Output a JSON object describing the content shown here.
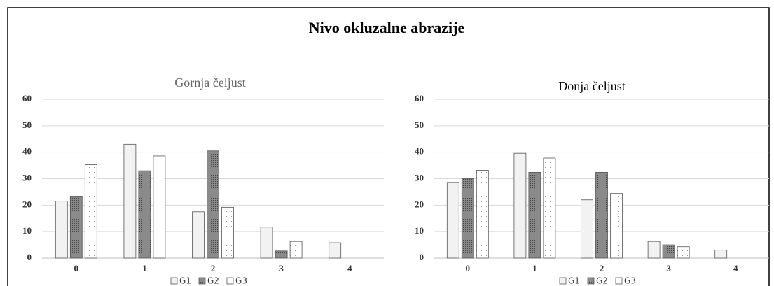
{
  "title": "Nivo okluzalne abrazije",
  "chart_data": [
    {
      "type": "bar",
      "title": "Gornja čeljust",
      "title_color": "#666666",
      "categories": [
        "0",
        "1",
        "2",
        "3",
        "4"
      ],
      "series": [
        {
          "name": "G1",
          "color": "#f2f2f2",
          "pattern": "none",
          "values": [
            21.5,
            43,
            17.5,
            11.7,
            5.8
          ]
        },
        {
          "name": "G2",
          "color": "#8a8a8a",
          "pattern": "dense",
          "values": [
            23.2,
            33,
            40.5,
            2.7,
            0
          ]
        },
        {
          "name": "G3",
          "color": "#ffffff",
          "pattern": "dots",
          "values": [
            35.3,
            38.6,
            19.2,
            6.3,
            0
          ]
        }
      ],
      "ylim": [
        0,
        60
      ],
      "yticks": [
        0,
        10,
        20,
        30,
        40,
        50,
        60
      ],
      "grid": true,
      "legend": "bottom"
    },
    {
      "type": "bar",
      "title": "Donja čeljust",
      "title_color": "#000000",
      "categories": [
        "0",
        "1",
        "2",
        "3",
        "4"
      ],
      "series": [
        {
          "name": "G1",
          "color": "#f2f2f2",
          "pattern": "none",
          "values": [
            28.6,
            39.6,
            22,
            6.3,
            3
          ]
        },
        {
          "name": "G2",
          "color": "#8a8a8a",
          "pattern": "dense",
          "values": [
            30,
            32.4,
            32.4,
            5,
            0
          ]
        },
        {
          "name": "G3",
          "color": "#ffffff",
          "pattern": "dots",
          "values": [
            33.2,
            37.8,
            24.4,
            4.3,
            0
          ]
        }
      ],
      "ylim": [
        0,
        60
      ],
      "yticks": [
        0,
        10,
        20,
        30,
        40,
        50,
        60
      ],
      "grid": true,
      "legend": "bottom"
    }
  ]
}
